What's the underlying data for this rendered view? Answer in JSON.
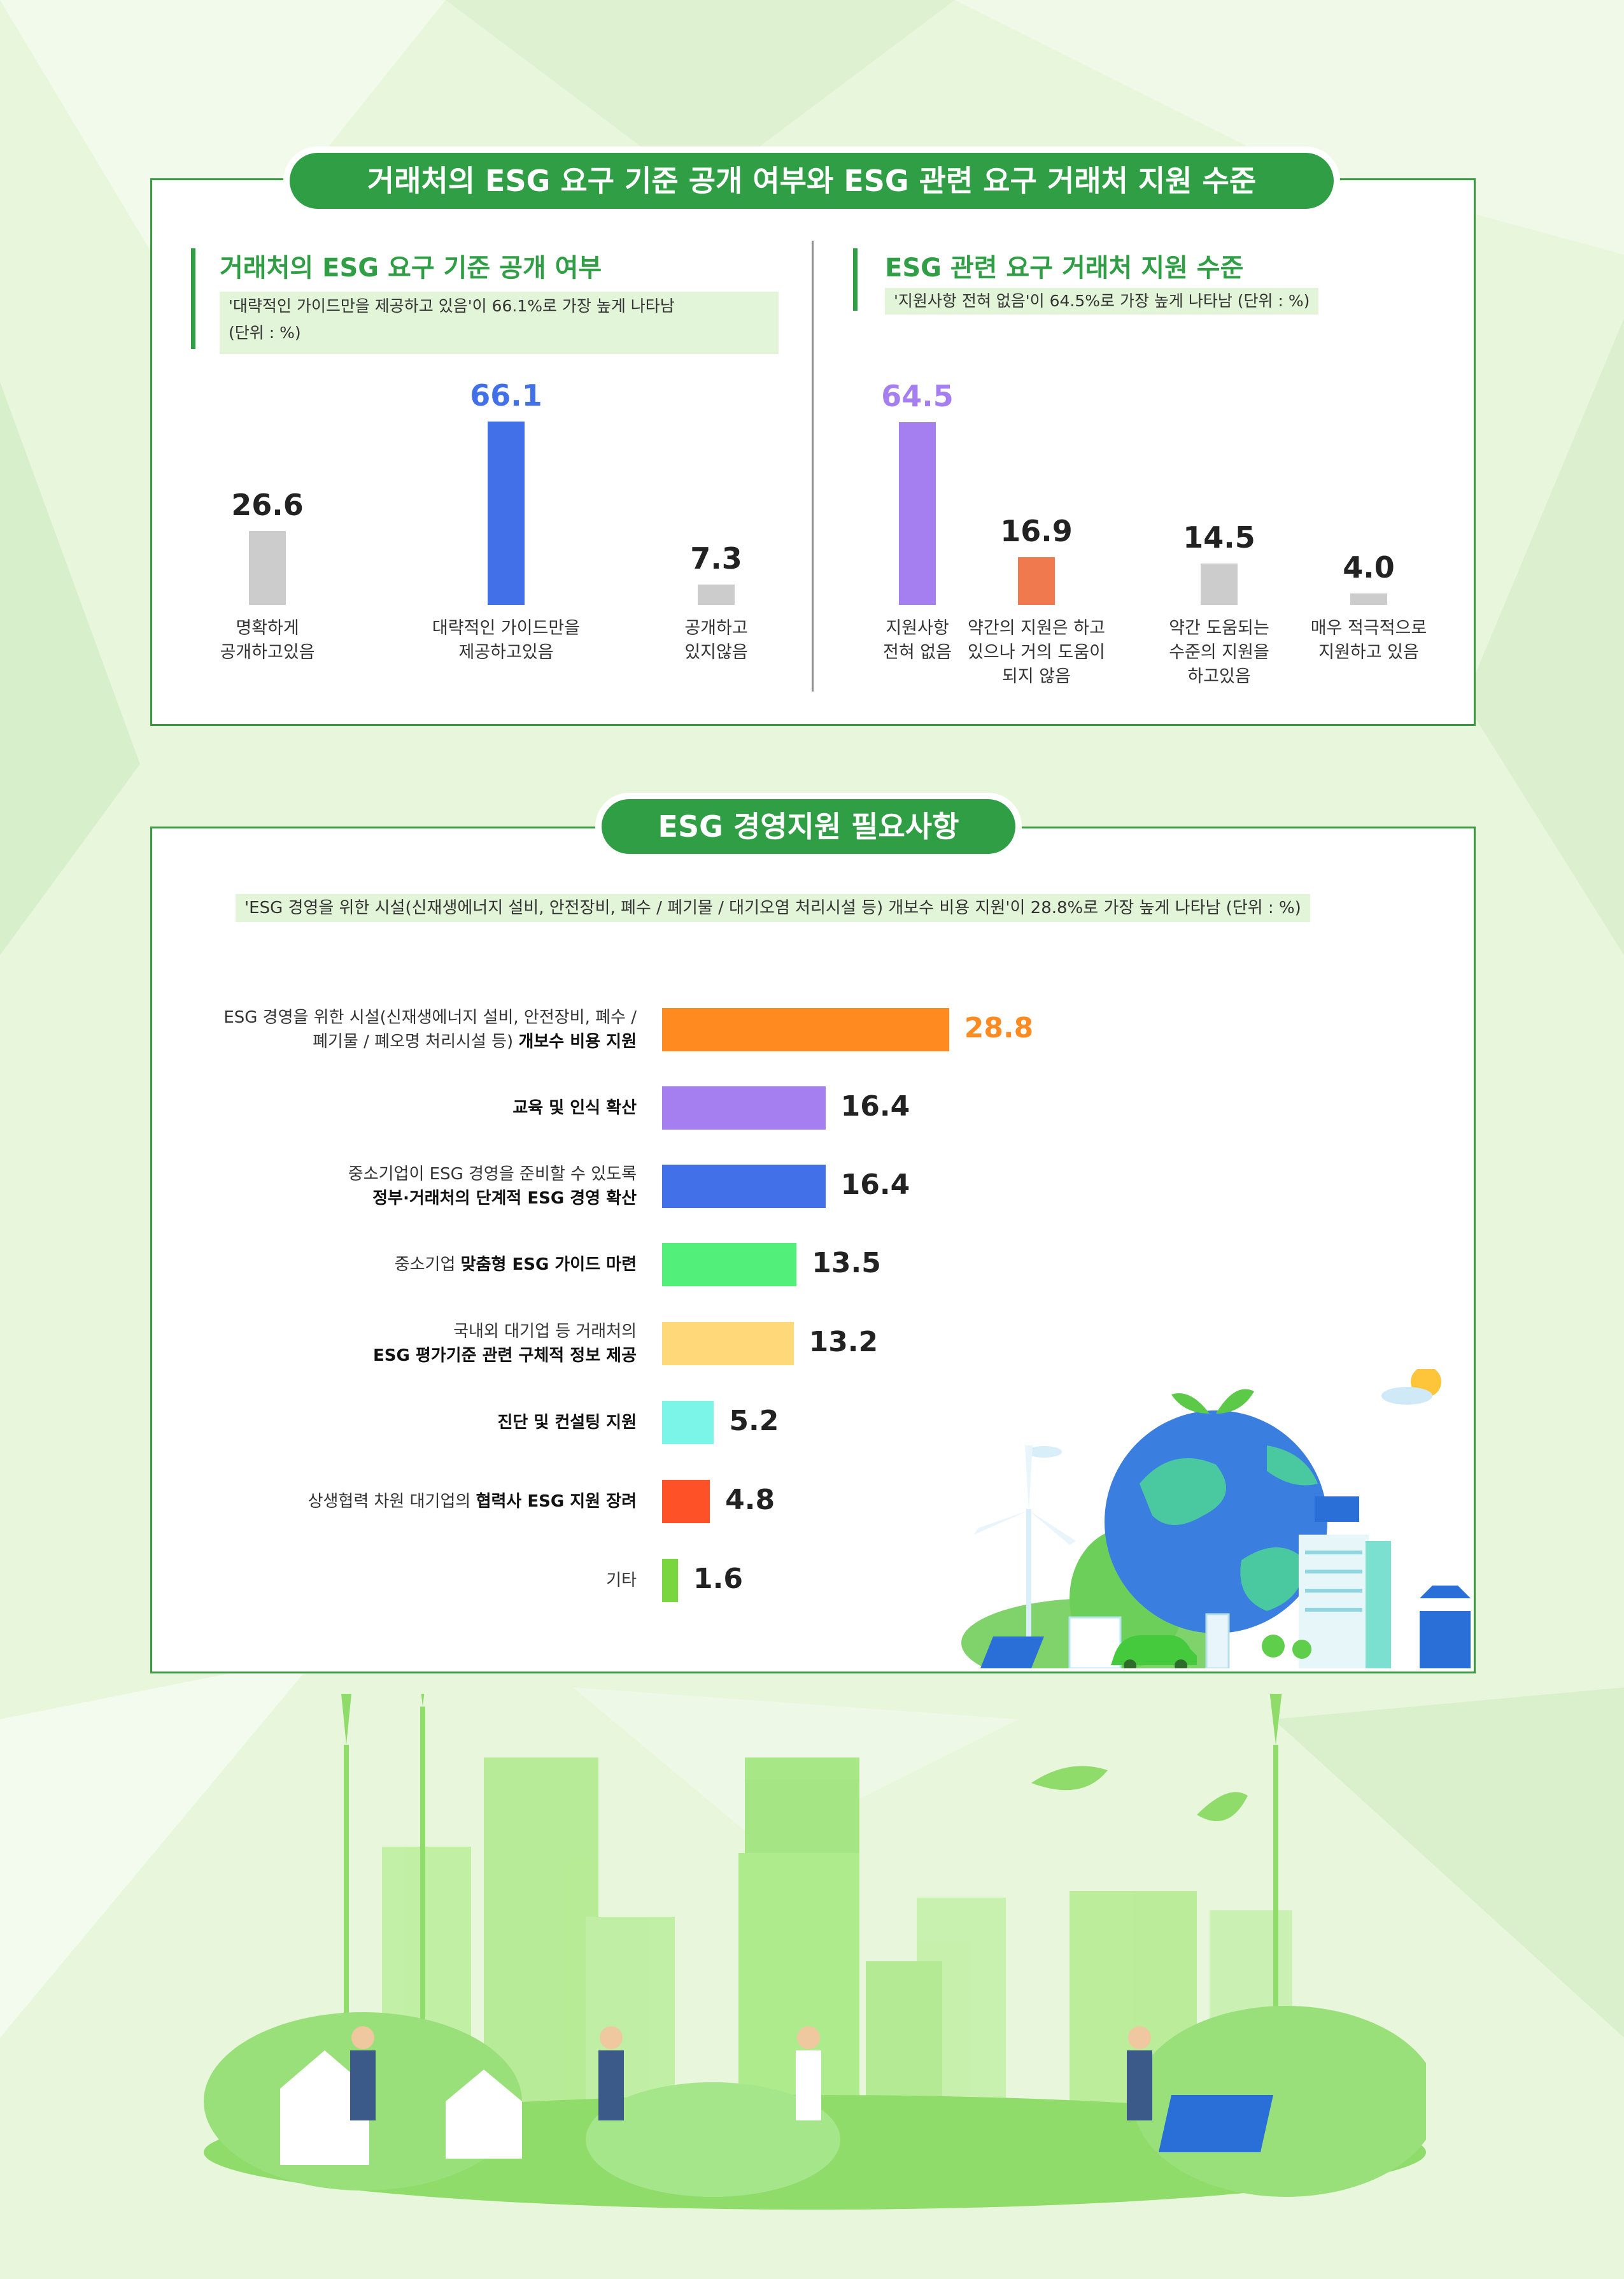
{
  "section1": {
    "title": "거래처의 ESG 요구 기준 공개 여부와 ESG 관련 요구 거래처 지원 수준",
    "left": {
      "subtitle": "거래처의 ESG 요구 기준 공개 여부",
      "note_line1": "'대략적인 가이드만을 제공하고 있음'이 66.1%로 가장 높게 나타남",
      "note_line2": "(단위 : %)"
    },
    "right": {
      "subtitle": "ESG 관련 요구 거래처 지원 수준",
      "note_line1": "'지원사항 전혀 없음'이 64.5%로 가장 높게 나타남 (단위 : %)"
    }
  },
  "section2": {
    "title": "ESG 경영지원 필요사항",
    "note": "'ESG 경영을 위한 시설(신재생에너지 설비, 안전장비, 폐수 / 폐기물 / 대기오염 처리시설 등) 개보수 비용 지원'이 28.8%로 가장 높게 나타남 (단위 : %)"
  },
  "chart_data": [
    {
      "type": "bar",
      "title": "거래처의 ESG 요구 기준 공개 여부",
      "categories": [
        "명확하게 공개하고있음",
        "대략적인 가이드만을 제공하고있음",
        "공개하고 있지않음"
      ],
      "category_lines": [
        [
          "명확하게",
          "공개하고있음"
        ],
        [
          "대략적인 가이드만을",
          "제공하고있음"
        ],
        [
          "공개하고",
          "있지않음"
        ]
      ],
      "values": [
        26.6,
        66.1,
        7.3
      ],
      "labels": [
        "26.6",
        "66.1",
        "7.3"
      ],
      "colors": [
        "#cccccc",
        "#4270e8",
        "#cccccc"
      ],
      "label_colors": [
        "#222222",
        "#4270e8",
        "#222222"
      ],
      "unit": "%"
    },
    {
      "type": "bar",
      "title": "ESG 관련 요구 거래처 지원 수준",
      "categories": [
        "지원사항 전혀 없음",
        "약간의 지원은 하고 있으나 거의 도움이 되지 않음",
        "약간 도움되는 수준의 지원을 하고있음",
        "매우 적극적으로 지원하고 있음"
      ],
      "category_lines": [
        [
          "지원사항",
          "전혀 없음"
        ],
        [
          "약간의 지원은 하고",
          "있으나 거의 도움이",
          "되지 않음"
        ],
        [
          "약간 도움되는",
          "수준의 지원을",
          "하고있음"
        ],
        [
          "매우 적극적으로",
          "지원하고 있음"
        ]
      ],
      "values": [
        64.5,
        16.9,
        14.5,
        4.0
      ],
      "labels": [
        "64.5",
        "16.9",
        "14.5",
        "4.0"
      ],
      "colors": [
        "#a57ef0",
        "#f07a4e",
        "#cccccc",
        "#cccccc"
      ],
      "label_colors": [
        "#a57ef0",
        "#222222",
        "#222222",
        "#222222"
      ],
      "unit": "%"
    },
    {
      "type": "bar",
      "orientation": "horizontal",
      "title": "ESG 경영지원 필요사항",
      "categories": [
        "ESG 경영을 위한 시설(신재생에너지 설비, 안전장비, 폐수 / 폐기물 / 폐오명 처리시설 등) 개보수 비용 지원",
        "교육 및 인식 확산",
        "중소기업이 ESG 경영을 준비할 수 있도록 정부·거래처의 단계적 ESG 경영 확산",
        "중소기업 맞춤형 ESG 가이드 마련",
        "국내외 대기업 등 거래처의 ESG 평가기준 관련 구체적 정보 제공",
        "진단 및 컨설팅 지원",
        "상생협력 차원 대기업의 협력사 ESG 지원 장려",
        "기타"
      ],
      "category_lines": [
        [
          [
            "ESG 경영을 위한 시설(신재생에너지 설비, 안전장비, 폐수 /",
            ""
          ]
        ],
        [
          [
            "",
            "교육 및 인식 확산"
          ]
        ],
        [
          [
            "중소기업이 ESG 경영을 준비할 수 있도록",
            ""
          ],
          [
            "",
            "정부·거래처의 단계적 ESG 경영 확산"
          ]
        ],
        [
          [
            "중소기업 ",
            "맞춤형 ESG 가이드 마련"
          ]
        ],
        [
          [
            "국내외 대기업 등 거래처의",
            ""
          ],
          [
            "",
            "ESG 평가기준 관련 구체적 정보 제공"
          ]
        ],
        [
          [
            "",
            "진단 및 컨설팅 지원"
          ]
        ],
        [
          [
            "상생협력 차원 대기업의 ",
            "협력사 ESG 지원 장려"
          ]
        ],
        [
          [
            "기타",
            ""
          ]
        ]
      ],
      "first_second_line": [
        "폐기물 / 폐오명 처리시설 등) ",
        "개보수 비용 지원"
      ],
      "values": [
        28.8,
        16.4,
        16.4,
        13.5,
        13.2,
        5.2,
        4.8,
        1.6
      ],
      "labels": [
        "28.8",
        "16.4",
        "16.4",
        "13.5",
        "13.2",
        "5.2",
        "4.8",
        "1.6"
      ],
      "colors": [
        "#ff8a1f",
        "#a57ef0",
        "#4270e8",
        "#52f07a",
        "#ffd87a",
        "#7af5e8",
        "#ff5128",
        "#7ad63e"
      ],
      "label_colors": [
        "#ff8a1f",
        "#222222",
        "#222222",
        "#222222",
        "#222222",
        "#222222",
        "#222222",
        "#222222"
      ],
      "unit": "%"
    }
  ]
}
